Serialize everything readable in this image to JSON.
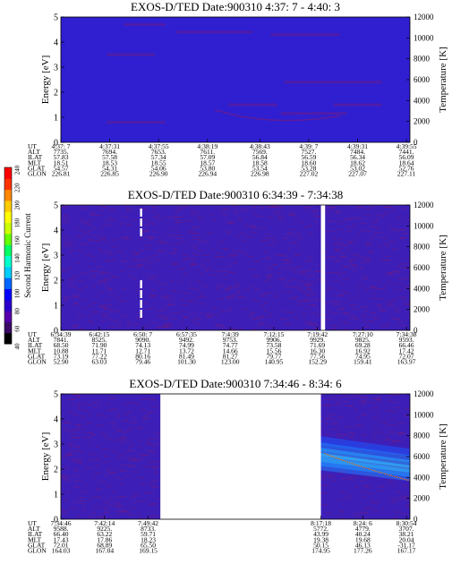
{
  "colorbar": {
    "label": "Second Harmonic Current",
    "ticks": [
      "40",
      "60",
      "80",
      "100",
      "120",
      "140",
      "160",
      "180",
      "200",
      "220",
      "240"
    ],
    "colors": [
      "#000000",
      "#3a0a66",
      "#5500aa",
      "#2a00cc",
      "#0000ff",
      "#0066ff",
      "#00ccff",
      "#00ffcc",
      "#00ff66",
      "#66ff00",
      "#ccff00",
      "#ffff00",
      "#ffcc00",
      "#ff8800",
      "#ff3300",
      "#ff0000"
    ]
  },
  "chart_data": [
    {
      "type": "heatmap",
      "title": "EXOS-D/TED   Date:900310  4:37: 7 - 4:40: 3",
      "ylabel": "Energy [eV]",
      "y2label": "Temperature [K]",
      "ylim": [
        0,
        5
      ],
      "y2lim": [
        0,
        12000
      ],
      "yticks": [
        "0",
        "1",
        "2",
        "3",
        "4",
        "5"
      ],
      "y2ticks": [
        "0",
        "2000",
        "4000",
        "6000",
        "8000",
        "10000",
        "12000"
      ],
      "background": "#2f1fd0",
      "gaps": [],
      "orbit_rows": [
        "UT",
        "ALT",
        "ILAT",
        "MLT",
        "GLAT",
        "GLON"
      ],
      "orbit_columns": [
        {
          "x": 0.0,
          "UT": "4:37: 7",
          "ALT": "7735.",
          "ILAT": "57.83",
          "MLT": "18.51",
          "GLAT": "54.57",
          "GLON": "226.81"
        },
        {
          "x": 0.14,
          "UT": "4:37:31",
          "ALT": "7694.",
          "ILAT": "57.58",
          "MLT": "18.53",
          "GLAT": "54.31",
          "GLON": "226.85"
        },
        {
          "x": 0.28,
          "UT": "4:37:55",
          "ALT": "7653.",
          "ILAT": "57.34",
          "MLT": "18.55",
          "GLAT": "54.06",
          "GLON": "226.90"
        },
        {
          "x": 0.42,
          "UT": "4:38:19",
          "ALT": "7611.",
          "ILAT": "57.09",
          "MLT": "18.57",
          "GLAT": "53.80",
          "GLON": "226.94"
        },
        {
          "x": 0.57,
          "UT": "4:38:43",
          "ALT": "7569.",
          "ILAT": "56.84",
          "MLT": "18.58",
          "GLAT": "53.54",
          "GLON": "226.98"
        },
        {
          "x": 0.71,
          "UT": "4:39: 7",
          "ALT": "7527.",
          "ILAT": "56.59",
          "MLT": "18.60",
          "GLAT": "53.28",
          "GLON": "227.02"
        },
        {
          "x": 0.85,
          "UT": "4:39:31",
          "ALT": "7484.",
          "ILAT": "56.34",
          "MLT": "18.62",
          "GLAT": "53.02",
          "GLON": "227.07"
        },
        {
          "x": 0.99,
          "UT": "4:39:55",
          "ALT": "7441.",
          "ILAT": "56.09",
          "MLT": "18.64",
          "GLAT": "52.76",
          "GLON": "227.11"
        }
      ]
    },
    {
      "type": "heatmap",
      "title": "EXOS-D/TED   Date:900310  6:34:39 - 7:34:38",
      "ylabel": "Energy [eV]",
      "y2label": "Temperature [K]",
      "ylim": [
        0,
        5
      ],
      "y2lim": [
        0,
        12000
      ],
      "yticks": [
        "0",
        "1",
        "2",
        "3",
        "4",
        "5"
      ],
      "y2ticks": [
        "0",
        "2000",
        "4000",
        "6000",
        "8000",
        "10000",
        "12000"
      ],
      "background": "#3d1fb8",
      "gaps": [
        [
          0.745,
          0.757
        ]
      ],
      "orbit_rows": [
        "UT",
        "ALT",
        "ILAT",
        "MLT",
        "GLAT",
        "GLON"
      ],
      "orbit_columns": [
        {
          "x": 0.0,
          "UT": "6:34:39",
          "ALT": "7841.",
          "ILAT": "68.50",
          "MLT": "10.88",
          "GLAT": "73.19",
          "GLON": "52.90"
        },
        {
          "x": 0.11,
          "UT": "6:42:15",
          "ALT": "8525.",
          "ILAT": "71.90",
          "MLT": "11.71",
          "GLAT": "77.22",
          "GLON": "63.03"
        },
        {
          "x": 0.235,
          "UT": "6:50: 7",
          "ALT": "9090.",
          "ILAT": "74.13",
          "MLT": "12.71",
          "GLAT": "80.16",
          "GLON": "79.46"
        },
        {
          "x": 0.36,
          "UT": "6:57:35",
          "ALT": "9492.",
          "ILAT": "74.99",
          "MLT": "13.72",
          "GLAT": "81.49",
          "GLON": "101.30"
        },
        {
          "x": 0.485,
          "UT": "7:4:39",
          "ALT": "9753.",
          "ILAT": "74.77",
          "MLT": "14.66",
          "GLAT": "81.27",
          "GLON": "123.00"
        },
        {
          "x": 0.61,
          "UT": "7:12:15",
          "ALT": "9906.",
          "ILAT": "73.58",
          "MLT": "15.56",
          "GLAT": "79.77",
          "GLON": "140.95"
        },
        {
          "x": 0.735,
          "UT": "7:19:42",
          "ALT": "9929.",
          "ILAT": "71.69",
          "MLT": "16.30",
          "GLAT": "77.56",
          "GLON": "152.29"
        },
        {
          "x": 0.865,
          "UT": "7:27:10",
          "ALT": "9825.",
          "ILAT": "69.28",
          "MLT": "16.92",
          "GLAT": "74.95",
          "GLON": "159.41"
        },
        {
          "x": 0.99,
          "UT": "7:34:38",
          "ALT": "9593.",
          "ILAT": "66.46",
          "MLT": "17.42",
          "GLAT": "72.07",
          "GLON": "163.97"
        }
      ]
    },
    {
      "type": "heatmap",
      "title": "EXOS-D/TED   Date:900310  7:34:46 - 8:34: 6",
      "ylabel": "Energy [eV]",
      "y2label": "Temperature [K]",
      "ylim": [
        0,
        5
      ],
      "y2lim": [
        0,
        12000
      ],
      "yticks": [
        "0",
        "1",
        "2",
        "3",
        "4",
        "5"
      ],
      "y2ticks": [
        "0",
        "2000",
        "4000",
        "6000",
        "8000",
        "10000",
        "12000"
      ],
      "background": "#3d1fb8",
      "gaps": [
        [
          0.285,
          0.745
        ]
      ],
      "orbit_rows": [
        "UT",
        "ALT",
        "ILAT",
        "MLT",
        "GLAT",
        "GLON"
      ],
      "orbit_columns": [
        {
          "x": 0.0,
          "UT": "7:34:46",
          "ALT": "9588.",
          "ILAT": "66.40",
          "MLT": "17.43",
          "GLAT": "72.01",
          "GLON": "164.03"
        },
        {
          "x": 0.125,
          "UT": "7:42:14",
          "ALT": "9225.",
          "ILAT": "63.22",
          "MLT": "17.86",
          "GLAT": "68.89",
          "GLON": "167.04"
        },
        {
          "x": 0.25,
          "UT": "7:49:42",
          "ALT": "8733.",
          "ILAT": "59.71",
          "MLT": "18.23",
          "GLAT": "65.50",
          "GLON": "169.15"
        },
        {
          "x": 0.745,
          "UT": "8:17:18",
          "ALT": "5772.",
          "ILAT": "43.99",
          "MLT": "19.38",
          "GLAT": "50.15",
          "GLON": "174.95"
        },
        {
          "x": 0.865,
          "UT": "8:24: 6",
          "ALT": "4779.",
          "ILAT": "40.24",
          "MLT": "19.68",
          "GLAT": "46.13",
          "GLON": "177.26"
        },
        {
          "x": 0.99,
          "UT": "8:30:54",
          "ALT": "3707.",
          "ILAT": "38.21",
          "MLT": "20.04",
          "GLAT": "-31.17",
          "GLON": "167.17"
        }
      ]
    }
  ]
}
